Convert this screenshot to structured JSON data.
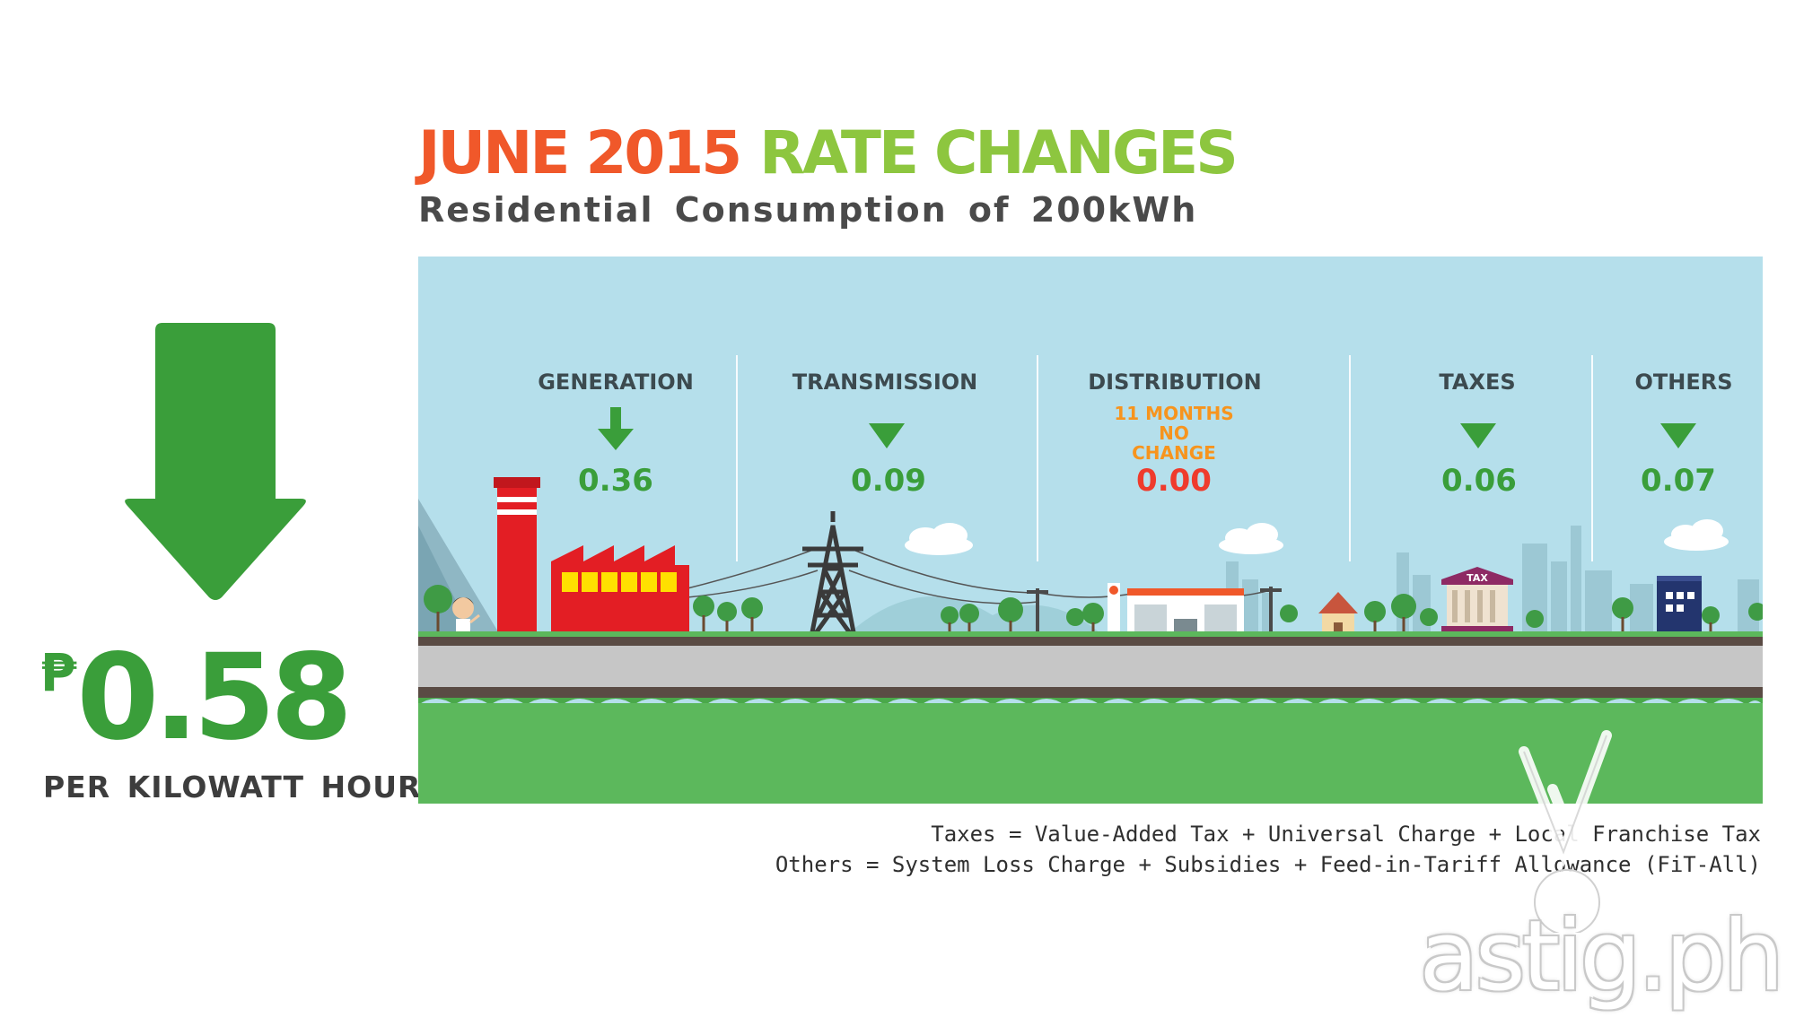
{
  "header": {
    "title_part1": "JUNE 2015",
    "title_part2": "RATE CHANGES",
    "subtitle": "Residential Consumption of 200kWh"
  },
  "summary": {
    "currency_symbol": "₱",
    "total_change": "0.58",
    "unit_label": "PER KILOWATT HOUR",
    "direction_icon": "down-arrow-icon",
    "arrow_color": "#3a9e3a"
  },
  "categories": [
    {
      "label": "GENERATION",
      "value": "0.36",
      "direction": "down",
      "color": "#3a9e3a"
    },
    {
      "label": "TRANSMISSION",
      "value": "0.09",
      "direction": "down",
      "color": "#3a9e3a"
    },
    {
      "label": "DISTRIBUTION",
      "value": "0.00",
      "direction": "none",
      "color": "#ef3b2c",
      "note_lines": [
        "11 MONTHS",
        "NO",
        "CHANGE"
      ],
      "note_color": "#f7941d"
    },
    {
      "label": "TAXES",
      "value": "0.06",
      "direction": "down",
      "color": "#3a9e3a"
    },
    {
      "label": "OTHERS",
      "value": "0.07",
      "direction": "down",
      "color": "#3a9e3a"
    }
  ],
  "scene": {
    "tax_sign": "TAX",
    "colors": {
      "sky": "#b5dfeb",
      "grass": "#5cb85c",
      "road": "#c6c6c6",
      "factory": "#e31e24"
    }
  },
  "footnotes": {
    "line1": "Taxes = Value-Added Tax + Universal Charge + Local Franchise Tax",
    "line2": "Others = System Loss Charge + Subsidies + Feed-in-Tariff Allowance (FiT-All)"
  },
  "watermark": {
    "text": "astig.ph"
  }
}
